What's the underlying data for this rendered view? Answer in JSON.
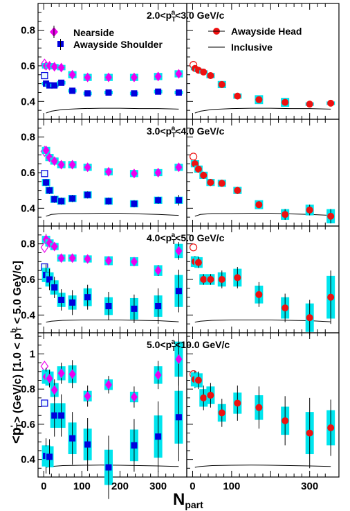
{
  "chart_data": {
    "type": "scatter",
    "x_axis_label": "N",
    "x_axis_label_sub": "part",
    "y_axis_label": "<p'T> (GeV/c) [1.0 < p^b_T < 5.0 GeV/c]",
    "y_axis_label_parts": {
      "open": "<p",
      "sup": "'",
      "sub": "T",
      "mid": "> (GeV/c) [1.0 < p",
      "sup2": "b",
      "sub2": "T",
      "close": " < 5.0 GeV/c]"
    },
    "xlim": [
      -15,
      375
    ],
    "x_ticks": [
      "0",
      "100",
      "200",
      "300"
    ],
    "legend": {
      "nearside": "Nearside",
      "awayside_shoulder": "Awayside Shoulder",
      "awayside_head": "Awayside Head",
      "inclusive": "Inclusive"
    },
    "colors": {
      "nearside": "#ee00ee",
      "shoulder": "#0000dd",
      "head": "#ee1111",
      "syst_band": "#00e5ee",
      "inclusive": "#000000"
    },
    "panels": [
      {
        "bin_label": "2.0<p",
        "bin_label_sub": "T",
        "bin_label_sup": "a",
        "bin_label_rest": "<3.0 GeV/c",
        "ylim": [
          0.3,
          0.95
        ],
        "y_ticks": [
          0.4,
          0.6,
          0.8
        ],
        "y_tick_labels": [
          "0.4",
          "0.6",
          "0.8"
        ],
        "nearside_pp": 0.61,
        "shoulder_pp": 0.545,
        "head_pp": 0.605,
        "nearside": [
          [
            6,
            0.6,
            0.01,
            0.015
          ],
          [
            15,
            0.6,
            0.01,
            0.015
          ],
          [
            28,
            0.595,
            0.01,
            0.015
          ],
          [
            46,
            0.59,
            0.01,
            0.015
          ],
          [
            75,
            0.55,
            0.01,
            0.02
          ],
          [
            115,
            0.535,
            0.01,
            0.02
          ],
          [
            170,
            0.535,
            0.01,
            0.02
          ],
          [
            237,
            0.535,
            0.01,
            0.02
          ],
          [
            300,
            0.54,
            0.01,
            0.02
          ],
          [
            354,
            0.555,
            0.01,
            0.02
          ]
        ],
        "shoulder": [
          [
            6,
            0.5,
            0.01,
            0.01
          ],
          [
            15,
            0.49,
            0.01,
            0.01
          ],
          [
            28,
            0.49,
            0.01,
            0.01
          ],
          [
            46,
            0.505,
            0.01,
            0.01
          ],
          [
            75,
            0.46,
            0.01,
            0.01
          ],
          [
            115,
            0.445,
            0.01,
            0.01
          ],
          [
            170,
            0.45,
            0.01,
            0.01
          ],
          [
            237,
            0.445,
            0.01,
            0.01
          ],
          [
            300,
            0.455,
            0.01,
            0.01
          ],
          [
            354,
            0.45,
            0.01,
            0.01
          ]
        ],
        "head": [
          [
            6,
            0.585,
            0.01,
            0.01
          ],
          [
            15,
            0.575,
            0.01,
            0.01
          ],
          [
            28,
            0.565,
            0.01,
            0.01
          ],
          [
            46,
            0.545,
            0.01,
            0.015
          ],
          [
            75,
            0.495,
            0.01,
            0.02
          ],
          [
            115,
            0.43,
            0.01,
            0.015
          ],
          [
            170,
            0.41,
            0.01,
            0.025
          ],
          [
            237,
            0.395,
            0.01,
            0.025
          ],
          [
            300,
            0.385,
            0.01,
            0.01
          ],
          [
            354,
            0.39,
            0.01,
            0.01
          ]
        ],
        "inclusive": [
          [
            6,
            0.335
          ],
          [
            20,
            0.345
          ],
          [
            50,
            0.355
          ],
          [
            100,
            0.36
          ],
          [
            150,
            0.362
          ],
          [
            200,
            0.362
          ],
          [
            250,
            0.36
          ],
          [
            300,
            0.36
          ],
          [
            354,
            0.357
          ]
        ]
      },
      {
        "bin_label": "3.0<p",
        "bin_label_sub": "T",
        "bin_label_sup": "a",
        "bin_label_rest": "<4.0 GeV/c",
        "ylim": [
          0.3,
          0.9
        ],
        "y_ticks": [
          0.4,
          0.6,
          0.8
        ],
        "y_tick_labels": [
          "0.4",
          "0.6",
          "0.8"
        ],
        "nearside_pp": 0.72,
        "shoulder_pp": 0.595,
        "head_pp": 0.69,
        "nearside": [
          [
            6,
            0.725,
            0.01,
            0.02
          ],
          [
            15,
            0.685,
            0.01,
            0.02
          ],
          [
            28,
            0.665,
            0.01,
            0.02
          ],
          [
            46,
            0.645,
            0.01,
            0.02
          ],
          [
            75,
            0.645,
            0.01,
            0.02
          ],
          [
            115,
            0.63,
            0.01,
            0.02
          ],
          [
            170,
            0.605,
            0.01,
            0.02
          ],
          [
            237,
            0.595,
            0.01,
            0.02
          ],
          [
            300,
            0.6,
            0.01,
            0.02
          ],
          [
            354,
            0.63,
            0.01,
            0.02
          ]
        ],
        "shoulder": [
          [
            6,
            0.545,
            0.02,
            0.02
          ],
          [
            15,
            0.5,
            0.02,
            0.02
          ],
          [
            28,
            0.45,
            0.02,
            0.02
          ],
          [
            46,
            0.44,
            0.02,
            0.02
          ],
          [
            75,
            0.455,
            0.02,
            0.02
          ],
          [
            115,
            0.475,
            0.02,
            0.02
          ],
          [
            170,
            0.44,
            0.02,
            0.02
          ],
          [
            237,
            0.425,
            0.02,
            0.02
          ],
          [
            300,
            0.445,
            0.02,
            0.02
          ],
          [
            354,
            0.445,
            0.03,
            0.02
          ]
        ],
        "head": [
          [
            6,
            0.65,
            0.02,
            0.02
          ],
          [
            15,
            0.62,
            0.02,
            0.02
          ],
          [
            28,
            0.585,
            0.02,
            0.02
          ],
          [
            46,
            0.545,
            0.02,
            0.02
          ],
          [
            75,
            0.54,
            0.02,
            0.02
          ],
          [
            115,
            0.5,
            0.02,
            0.02
          ],
          [
            170,
            0.42,
            0.02,
            0.025
          ],
          [
            237,
            0.365,
            0.03,
            0.03
          ],
          [
            300,
            0.39,
            0.03,
            0.03
          ],
          [
            354,
            0.355,
            0.04,
            0.04
          ]
        ],
        "inclusive": [
          [
            6,
            0.355
          ],
          [
            20,
            0.365
          ],
          [
            50,
            0.37
          ],
          [
            100,
            0.37
          ],
          [
            150,
            0.372
          ],
          [
            200,
            0.372
          ],
          [
            250,
            0.368
          ],
          [
            300,
            0.365
          ],
          [
            354,
            0.36
          ]
        ]
      },
      {
        "bin_label": "4.0<p",
        "bin_label_sub": "T",
        "bin_label_sup": "a",
        "bin_label_rest": "<5.0 GeV/c",
        "ylim": [
          0.3,
          0.9
        ],
        "y_ticks": [
          0.4,
          0.6,
          0.8
        ],
        "y_tick_labels": [
          "0.4",
          "0.6",
          "0.8"
        ],
        "nearside_pp": 0.78,
        "shoulder_pp": 0.67,
        "head_pp": 0.78,
        "nearside": [
          [
            6,
            0.825,
            0.03,
            0.02
          ],
          [
            15,
            0.805,
            0.02,
            0.02
          ],
          [
            28,
            0.785,
            0.02,
            0.02
          ],
          [
            46,
            0.72,
            0.02,
            0.02
          ],
          [
            75,
            0.72,
            0.02,
            0.02
          ],
          [
            115,
            0.715,
            0.02,
            0.02
          ],
          [
            170,
            0.705,
            0.02,
            0.025
          ],
          [
            237,
            0.7,
            0.02,
            0.025
          ],
          [
            300,
            0.65,
            0.03,
            0.03
          ],
          [
            354,
            0.76,
            0.05,
            0.04
          ]
        ],
        "shoulder": [
          [
            6,
            0.625,
            0.06,
            0.04
          ],
          [
            15,
            0.6,
            0.06,
            0.04
          ],
          [
            28,
            0.555,
            0.06,
            0.04
          ],
          [
            46,
            0.485,
            0.06,
            0.04
          ],
          [
            75,
            0.47,
            0.07,
            0.04
          ],
          [
            115,
            0.5,
            0.07,
            0.05
          ],
          [
            170,
            0.45,
            0.08,
            0.05
          ],
          [
            237,
            0.435,
            0.08,
            0.06
          ],
          [
            300,
            0.45,
            0.1,
            0.06
          ],
          [
            354,
            0.535,
            0.12,
            0.09
          ]
        ],
        "head": [
          [
            6,
            0.7,
            0.03,
            0.03
          ],
          [
            15,
            0.695,
            0.03,
            0.03
          ],
          [
            28,
            0.6,
            0.03,
            0.03
          ],
          [
            46,
            0.6,
            0.03,
            0.03
          ],
          [
            75,
            0.6,
            0.05,
            0.04
          ],
          [
            115,
            0.61,
            0.06,
            0.05
          ],
          [
            170,
            0.515,
            0.07,
            0.05
          ],
          [
            237,
            0.44,
            0.08,
            0.06
          ],
          [
            300,
            0.385,
            0.1,
            0.08
          ],
          [
            354,
            0.5,
            0.15,
            0.12
          ]
        ],
        "inclusive": [
          [
            6,
            0.36
          ],
          [
            20,
            0.365
          ],
          [
            50,
            0.37
          ],
          [
            100,
            0.372
          ],
          [
            150,
            0.372
          ],
          [
            200,
            0.372
          ],
          [
            250,
            0.37
          ],
          [
            300,
            0.368
          ],
          [
            354,
            0.362
          ]
        ]
      },
      {
        "bin_label": "5.0<p",
        "bin_label_sub": "T",
        "bin_label_sup": "a",
        "bin_label_rest": "<10.0 GeV/c",
        "ylim": [
          0.3,
          1.12
        ],
        "y_ticks": [
          0.4,
          0.6,
          0.8,
          1.0
        ],
        "y_tick_labels": [
          "0.4",
          "0.6",
          "0.8",
          "1"
        ],
        "nearside_pp": 0.93,
        "shoulder_pp": 0.72,
        "head_pp": 0.885,
        "nearside": [
          [
            6,
            0.87,
            0.05,
            0.04
          ],
          [
            15,
            0.86,
            0.05,
            0.04
          ],
          [
            28,
            0.795,
            0.06,
            0.04
          ],
          [
            46,
            0.89,
            0.06,
            0.04
          ],
          [
            75,
            0.885,
            0.08,
            0.05
          ],
          [
            115,
            0.76,
            0.06,
            0.03
          ],
          [
            170,
            0.825,
            0.05,
            0.03
          ],
          [
            237,
            0.755,
            0.06,
            0.03
          ],
          [
            300,
            0.88,
            0.08,
            0.05
          ],
          [
            354,
            0.97,
            0.15,
            0.1
          ]
        ],
        "shoulder": [
          [
            6,
            0.42,
            0.1,
            0.06
          ],
          [
            15,
            0.415,
            0.1,
            0.06
          ],
          [
            28,
            0.65,
            0.12,
            0.07
          ],
          [
            46,
            0.65,
            0.12,
            0.07
          ],
          [
            75,
            0.52,
            0.15,
            0.09
          ],
          [
            115,
            0.485,
            0.15,
            0.09
          ],
          [
            170,
            0.355,
            0.18,
            0.1
          ],
          [
            237,
            0.48,
            0.15,
            0.09
          ],
          [
            300,
            0.53,
            0.2,
            0.12
          ],
          [
            354,
            0.64,
            0.25,
            0.15
          ]
        ],
        "head": [
          [
            6,
            0.855,
            0.05,
            0.04
          ],
          [
            15,
            0.85,
            0.05,
            0.04
          ],
          [
            28,
            0.75,
            0.07,
            0.05
          ],
          [
            46,
            0.765,
            0.07,
            0.05
          ],
          [
            75,
            0.665,
            0.08,
            0.05
          ],
          [
            115,
            0.72,
            0.1,
            0.06
          ],
          [
            170,
            0.695,
            0.12,
            0.07
          ],
          [
            237,
            0.62,
            0.14,
            0.08
          ],
          [
            300,
            0.55,
            0.2,
            0.12
          ],
          [
            354,
            0.58,
            0.16,
            0.1
          ]
        ],
        "inclusive": [
          [
            6,
            0.355
          ],
          [
            20,
            0.36
          ],
          [
            50,
            0.365
          ],
          [
            100,
            0.367
          ],
          [
            150,
            0.368
          ],
          [
            200,
            0.367
          ],
          [
            250,
            0.365
          ],
          [
            300,
            0.363
          ],
          [
            354,
            0.36
          ]
        ]
      }
    ]
  }
}
